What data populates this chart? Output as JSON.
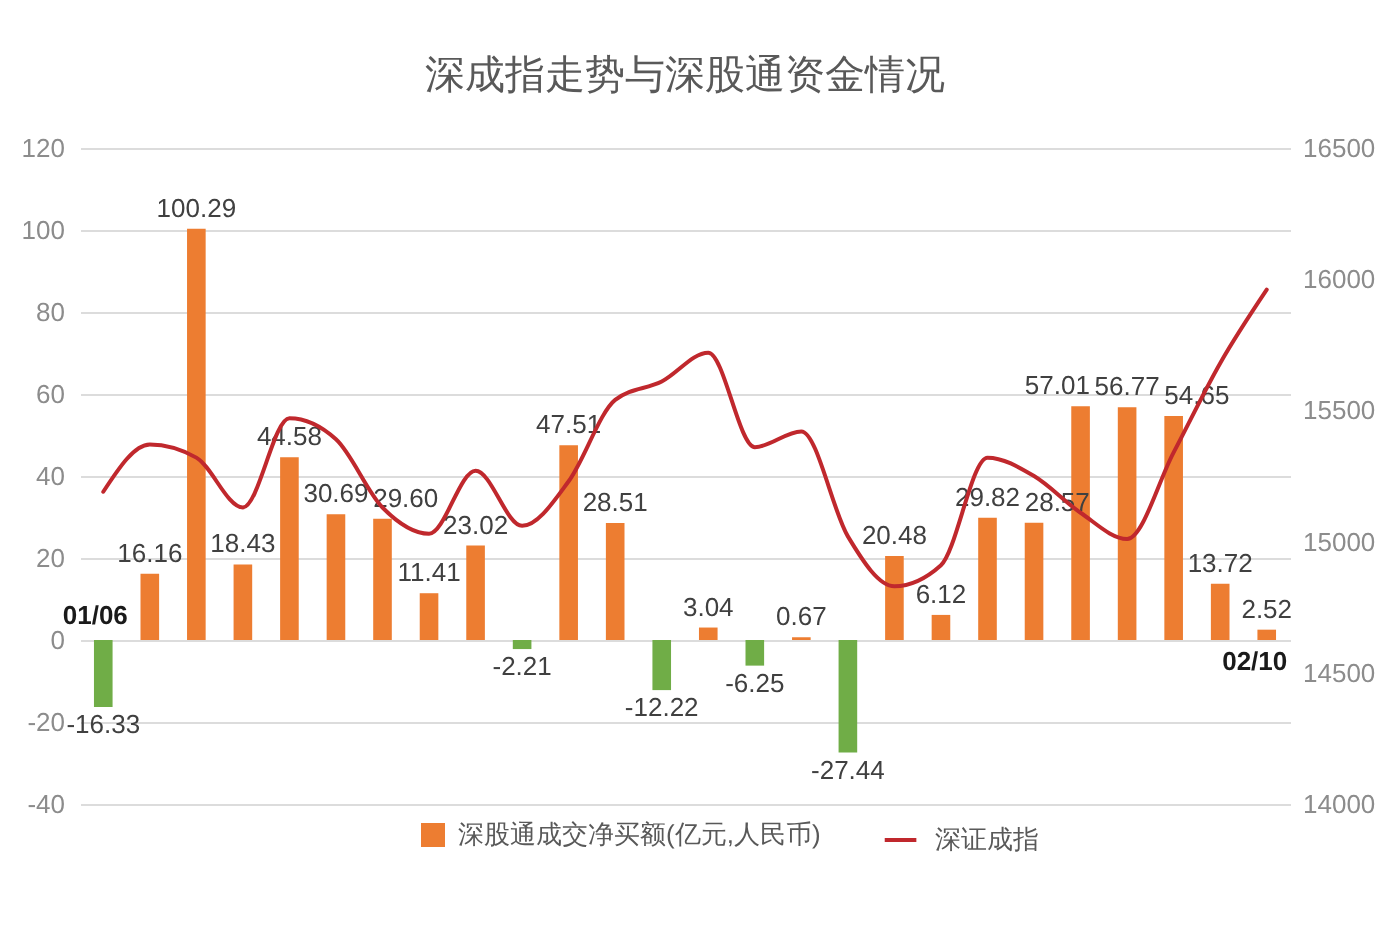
{
  "chart_data": {
    "type": "bar",
    "title": "深成指走势与深股通资金情况",
    "categories": [
      "01/06",
      null,
      null,
      null,
      null,
      null,
      null,
      null,
      null,
      null,
      null,
      null,
      null,
      null,
      null,
      null,
      null,
      null,
      null,
      null,
      null,
      null,
      null,
      null,
      null,
      "02/10"
    ],
    "series": [
      {
        "name": "深股通成交净买额(亿元,人民币)",
        "color": "#ed7d31",
        "colors": [
          "#70ad47",
          "#ed7d31",
          "#ed7d31",
          "#ed7d31",
          "#ed7d31",
          "#ed7d31",
          "#ed7d31",
          "#ed7d31",
          "#ed7d31",
          "#70ad47",
          "#ed7d31",
          "#ed7d31",
          "#70ad47",
          "#ed7d31",
          "#70ad47",
          "#ed7d31",
          "#70ad47",
          "#ed7d31",
          "#ed7d31",
          "#ed7d31",
          "#ed7d31",
          "#ed7d31",
          "#ed7d31",
          "#ed7d31",
          "#ed7d31",
          "#ed7d31"
        ],
        "values": [
          -16.33,
          16.16,
          100.29,
          18.43,
          44.58,
          30.69,
          29.6,
          11.41,
          23.02,
          -2.21,
          47.51,
          28.51,
          -12.22,
          3.04,
          -6.25,
          0.67,
          -27.44,
          20.48,
          6.12,
          29.82,
          28.57,
          57.01,
          56.77,
          54.65,
          13.72,
          2.52
        ],
        "value_labels": [
          "-16.33",
          "16.16",
          "100.29",
          "18.43",
          "44.58",
          "30.69",
          "29.60",
          "11.41",
          "23.02",
          "-2.21",
          "47.51",
          "28.51",
          "-12.22",
          "3.04",
          "-6.25",
          "0.67",
          "-27.44",
          "20.48",
          "6.12",
          "29.82",
          "28.57",
          "57.01",
          "56.77",
          "54.65",
          "13.72",
          "2.52"
        ]
      },
      {
        "name": "深证成指",
        "type": "line",
        "axis": "y2",
        "color": "#c0282d",
        "values": [
          15190,
          15370,
          15320,
          15130,
          15470,
          15390,
          15130,
          15030,
          15270,
          15060,
          15230,
          15540,
          15610,
          15720,
          15360,
          15420,
          15020,
          14830,
          14910,
          15320,
          15250,
          15110,
          15010,
          15340,
          15680,
          15960
        ]
      }
    ],
    "ylim": [
      -40,
      120
    ],
    "yticks": [
      -40,
      -20,
      0,
      20,
      40,
      60,
      80,
      100,
      120
    ],
    "y2lim": [
      14000,
      16500
    ],
    "y2ticks": [
      14000,
      14500,
      15000,
      15500,
      16000,
      16500
    ],
    "grid": "y",
    "legend": "bottom"
  }
}
